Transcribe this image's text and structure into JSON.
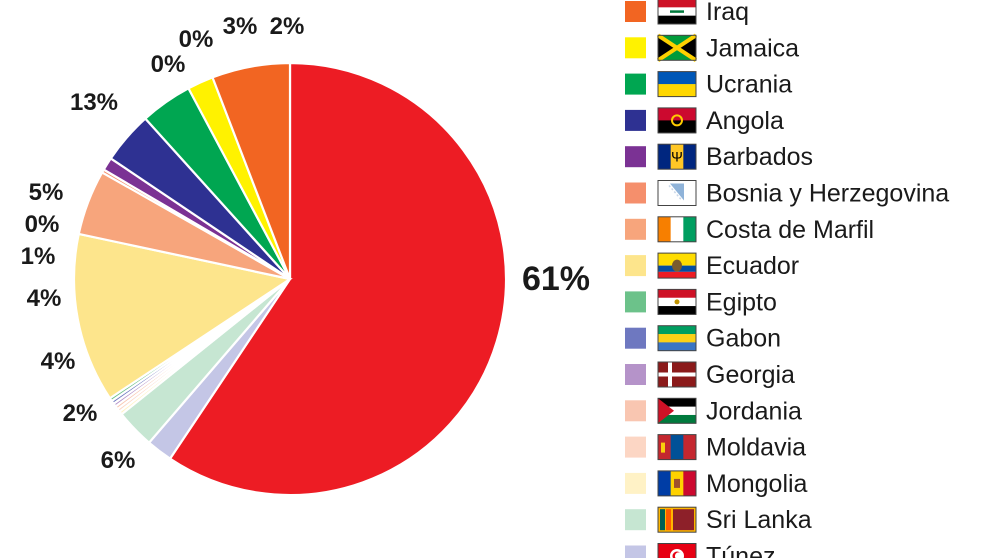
{
  "chart_data": {
    "type": "pie",
    "title": "",
    "legend_placement": "right",
    "slices": [
      {
        "label": "Iraq",
        "value": 6,
        "display": "6%",
        "color": "#f26522",
        "flag": "iraq-flag-icon"
      },
      {
        "label": "Jamaica",
        "value": 2,
        "display": "2%",
        "color": "#fff200",
        "flag": "jamaica-flag-icon"
      },
      {
        "label": "Ucrania",
        "value": 4,
        "display": "4%",
        "color": "#00a651",
        "flag": "ukraine-flag-icon"
      },
      {
        "label": "Angola",
        "value": 4,
        "display": "4%",
        "color": "#2e3192",
        "flag": "angola-flag-icon"
      },
      {
        "label": "Barbados",
        "value": 1,
        "display": "1%",
        "color": "#7b3294",
        "flag": "barbados-flag-icon"
      },
      {
        "label": "Bosnia y Herzegovina",
        "value": 0,
        "display": "0%",
        "color": "#f58f6c",
        "flag": "bosnia-flag-icon"
      },
      {
        "label": "Costa de Marfil",
        "value": 5,
        "display": "5%",
        "color": "#f7a57c",
        "flag": "ivory-coast-flag-icon"
      },
      {
        "label": "Ecuador",
        "value": 13,
        "display": "13%",
        "color": "#fde58c",
        "flag": "ecuador-flag-icon"
      },
      {
        "label": "Egipto",
        "value": 0,
        "display": "0%",
        "color": "#6cc28a",
        "flag": "egypt-flag-icon"
      },
      {
        "label": "Gabon",
        "value": 0,
        "display": "0%",
        "color": "#6e78c0",
        "flag": "gabon-flag-icon"
      },
      {
        "label": "Georgia",
        "value": 0,
        "display": "0%",
        "color": "#b593c9",
        "flag": "georgia-flag-icon"
      },
      {
        "label": "Jordania",
        "value": 0,
        "display": "0%",
        "color": "#f9c6b1",
        "flag": "jordan-flag-icon"
      },
      {
        "label": "Moldavia",
        "value": 0,
        "display": "0%",
        "color": "#fcd6c4",
        "flag": "moldova-flag-icon"
      },
      {
        "label": "Mongolia",
        "value": 0,
        "display": "0%",
        "color": "#fff2c6",
        "flag": "mongolia-flag-icon"
      },
      {
        "label": "Sri Lanka",
        "value": 3,
        "display": "3%",
        "color": "#c6e6d2",
        "flag": "sri-lanka-flag-icon"
      },
      {
        "label": "Túnez",
        "value": 2,
        "display": "2%",
        "color": "#c4c6e6",
        "flag": "tunisia-flag-icon"
      },
      {
        "label": "",
        "value": 61,
        "display": "61%",
        "color": "#ed1c24",
        "flag": ""
      }
    ]
  }
}
